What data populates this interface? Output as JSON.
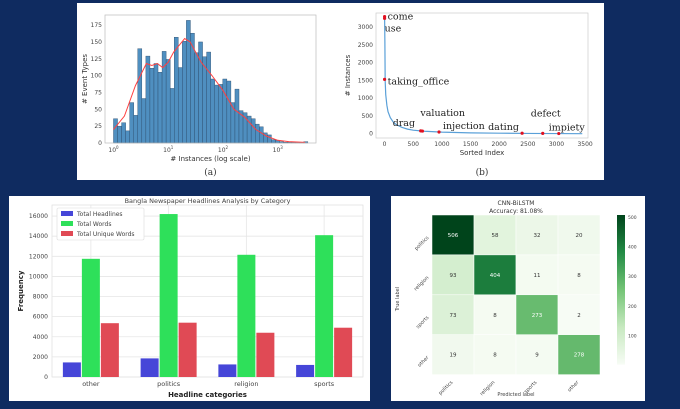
{
  "colors": {
    "background": "#0f2b60",
    "hist_bar": "#4f8fc0",
    "kde": "#ff4040",
    "curve": "#5aa0d8",
    "marker": "#e01020",
    "headlines": "#4646d8",
    "words": "#2ee05a",
    "unique": "#e04a55"
  },
  "chart_data": [
    {
      "type": "bar",
      "subtype": "histogram",
      "caption": "(a)",
      "xlabel": "# Instances (log scale)",
      "ylabel": "# Event Types",
      "xscale": "log",
      "xlim": [
        0.7,
        5000
      ],
      "ylim": [
        0,
        190
      ],
      "xticks": [
        "10^0",
        "10^1",
        "10^2",
        "10^3"
      ],
      "yticks": [
        0,
        25,
        50,
        75,
        100,
        125,
        150,
        175
      ],
      "bin_range_log10": [
        0,
        3.55
      ],
      "values": [
        36,
        25,
        30,
        18,
        60,
        41,
        140,
        66,
        129,
        111,
        118,
        105,
        136,
        124,
        81,
        157,
        112,
        151,
        182,
        163,
        134,
        150,
        128,
        135,
        95,
        86,
        87,
        95,
        92,
        60,
        80,
        48,
        45,
        40,
        36,
        28,
        24,
        15,
        12,
        5,
        4,
        2,
        1,
        1,
        1,
        1,
        1,
        2
      ],
      "kde": {
        "x_log10": [
          0,
          0.2,
          0.4,
          0.6,
          0.7,
          0.8,
          0.9,
          1.0,
          1.1,
          1.2,
          1.3,
          1.4,
          1.5,
          1.6,
          1.8,
          2.0,
          2.2,
          2.4,
          2.6,
          2.8,
          3.0,
          3.2,
          3.5
        ],
        "y": [
          20,
          40,
          85,
          118,
          115,
          118,
          112,
          120,
          135,
          145,
          155,
          150,
          135,
          120,
          100,
          78,
          50,
          38,
          20,
          10,
          4,
          2,
          1
        ]
      }
    },
    {
      "type": "line",
      "caption": "(b)",
      "xlabel": "Sorted Index",
      "ylabel": "# Instances",
      "xlim": [
        -150,
        3550
      ],
      "ylim": [
        -120,
        3400
      ],
      "xticks": [
        0,
        500,
        1000,
        1500,
        2000,
        2500,
        3000,
        3500
      ],
      "yticks": [
        0,
        500,
        1000,
        1500,
        2000,
        2500,
        3000
      ],
      "curve": {
        "x": [
          0,
          5,
          10,
          20,
          40,
          60,
          100,
          150,
          200,
          300,
          400,
          500,
          700,
          1000,
          1500,
          2000,
          2500,
          3000,
          3450
        ],
        "y": [
          3300,
          2600,
          1500,
          1100,
          800,
          620,
          450,
          330,
          260,
          180,
          130,
          100,
          70,
          45,
          25,
          15,
          9,
          5,
          2
        ]
      },
      "annotations": [
        {
          "label": "come",
          "x": 0,
          "y": 3300
        },
        {
          "label": "use",
          "x": 0,
          "y": 3250
        },
        {
          "label": "taking_office",
          "x": 0,
          "y": 1530
        },
        {
          "label": "drag",
          "x": 630,
          "y": 80
        },
        {
          "label": "valuation",
          "x": 660,
          "y": 75
        },
        {
          "label": "injection",
          "x": 950,
          "y": 50
        },
        {
          "label": "dating",
          "x": 2400,
          "y": 15
        },
        {
          "label": "defect",
          "x": 2760,
          "y": 10
        },
        {
          "label": "impiety",
          "x": 3040,
          "y": 5
        }
      ]
    },
    {
      "type": "bar",
      "title": "Bangla Newspaper Headlines Analysis by Category",
      "xlabel": "Headline categories",
      "ylabel": "Frequency",
      "ylim": [
        0,
        17100
      ],
      "yticks": [
        0,
        2000,
        4000,
        6000,
        8000,
        10000,
        12000,
        14000,
        16000
      ],
      "grid": true,
      "legend": "top-left",
      "categories": [
        "other",
        "politics",
        "religion",
        "sports"
      ],
      "series": [
        {
          "name": "Total Headlines",
          "values": [
            1450,
            1850,
            1250,
            1200
          ]
        },
        {
          "name": "Total Words",
          "values": [
            11750,
            16200,
            12150,
            14100
          ]
        },
        {
          "name": "Total Unique Words",
          "values": [
            5350,
            5400,
            4400,
            4900
          ]
        }
      ]
    },
    {
      "type": "heatmap",
      "title": "CNN-BiLSTM",
      "subtitle": "Accuracy: 81.08%",
      "xlabel": "Predicted label",
      "ylabel": "True label",
      "colormap": "Greens",
      "rows": [
        "politics",
        "religion",
        "sports",
        "other"
      ],
      "cols": [
        "politics",
        "religion",
        "sports",
        "other"
      ],
      "values": [
        [
          506,
          58,
          32,
          20
        ],
        [
          93,
          404,
          11,
          8
        ],
        [
          73,
          8,
          273,
          2
        ],
        [
          19,
          8,
          9,
          278
        ]
      ],
      "colorbar_ticks": [
        100,
        200,
        300,
        400,
        500
      ],
      "colorbar_range": [
        2,
        506
      ]
    }
  ]
}
